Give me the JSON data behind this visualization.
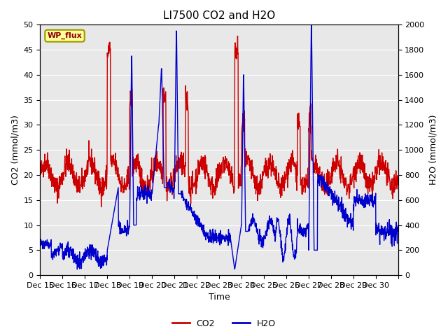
{
  "title": "LI7500 CO2 and H2O",
  "xlabel": "Time",
  "ylabel_left": "CO2 (mmol/m3)",
  "ylabel_right": "H2O (mmol/m3)",
  "ylim_left": [
    0,
    50
  ],
  "ylim_right": [
    0,
    2000
  ],
  "yticks_left": [
    0,
    5,
    10,
    15,
    20,
    25,
    30,
    35,
    40,
    45,
    50
  ],
  "yticks_right": [
    0,
    200,
    400,
    600,
    800,
    1000,
    1200,
    1400,
    1600,
    1800,
    2000
  ],
  "xtick_positions": [
    0,
    1,
    2,
    3,
    4,
    5,
    6,
    7,
    8,
    9,
    10,
    11,
    12,
    13,
    14,
    15,
    16
  ],
  "xtick_labels": [
    "Dec 15",
    "Dec 16",
    "Dec 17",
    "Dec 18",
    "Dec 19",
    "Dec 20",
    "Dec 21",
    "Dec 22",
    "Dec 23",
    "Dec 24",
    "Dec 25",
    "Dec 26",
    "Dec 27",
    "Dec 28",
    "Dec 29",
    "Dec 30",
    ""
  ],
  "co2_color": "#CC0000",
  "h2o_color": "#0000CC",
  "bg_color": "#E8E8E8",
  "legend_label_co2": "CO2",
  "legend_label_h2o": "H2O",
  "watermark_text": "WP_flux",
  "watermark_fg": "#8B0000",
  "watermark_bg": "#FFFF99",
  "watermark_border": "#999900",
  "linewidth": 1.0,
  "n_days": 16
}
